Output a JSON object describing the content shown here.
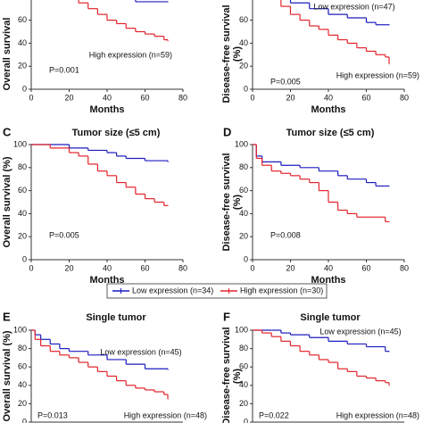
{
  "chart_data": [
    {
      "type": "line",
      "step": true,
      "ylabel": [
        "Overall survival"
      ],
      "xlabel": "Months",
      "annotation": "P=0.001",
      "xlim": [
        0,
        80
      ],
      "ylim": [
        0,
        100
      ],
      "xticks": [
        0,
        20,
        40,
        60,
        80
      ],
      "yticks": [
        0,
        20,
        40,
        60
      ],
      "series": [
        {
          "color": "#1c1cbe",
          "x": [
            0,
            10,
            20,
            30,
            40,
            45,
            55,
            72
          ],
          "values": [
            100,
            95,
            90,
            85,
            82,
            78,
            76,
            76
          ]
        },
        {
          "name": "High expression (n=59)",
          "color": "#e3232b",
          "x": [
            0,
            5,
            10,
            15,
            20,
            25,
            30,
            35,
            40,
            45,
            50,
            55,
            60,
            65,
            70,
            72
          ],
          "values": [
            100,
            95,
            88,
            83,
            80,
            75,
            70,
            65,
            60,
            57,
            53,
            50,
            48,
            46,
            43,
            42
          ]
        }
      ]
    },
    {
      "type": "line",
      "step": true,
      "ylabel": [
        "Disease-free survival",
        "(%)"
      ],
      "xlabel": "Months",
      "annotation": "P=0.005",
      "xlim": [
        0,
        80
      ],
      "ylim": [
        0,
        100
      ],
      "xticks": [
        0,
        20,
        40,
        60,
        80
      ],
      "yticks": [
        0,
        20,
        40,
        60
      ],
      "series": [
        {
          "name": "Low expression (n=47)",
          "color": "#1c1cbe",
          "x": [
            0,
            5,
            10,
            15,
            20,
            30,
            40,
            50,
            60,
            65,
            72
          ],
          "values": [
            100,
            90,
            82,
            78,
            75,
            70,
            65,
            62,
            58,
            56,
            56
          ]
        },
        {
          "name": "High expression (n=59)",
          "color": "#e3232b",
          "x": [
            0,
            5,
            10,
            15,
            20,
            25,
            30,
            35,
            40,
            45,
            50,
            55,
            60,
            65,
            70,
            72
          ],
          "values": [
            100,
            88,
            80,
            72,
            65,
            60,
            55,
            52,
            47,
            43,
            40,
            36,
            33,
            30,
            28,
            22
          ]
        }
      ]
    },
    {
      "type": "line",
      "step": true,
      "panel": "C",
      "title": "Tumor size (≤5 cm)",
      "ylabel": [
        "Overall survival (%)"
      ],
      "xlabel": "Months",
      "annotation": "P=0.005",
      "xlim": [
        0,
        80
      ],
      "ylim": [
        0,
        100
      ],
      "xticks": [
        0,
        20,
        40,
        60,
        80
      ],
      "yticks": [
        0,
        20,
        40,
        60,
        80,
        100
      ],
      "series": [
        {
          "name": "Low expression (n=34)",
          "color": "#1c1cbe",
          "x": [
            0,
            20,
            30,
            40,
            45,
            50,
            60,
            72
          ],
          "values": [
            100,
            97,
            95,
            93,
            90,
            88,
            86,
            85
          ]
        },
        {
          "name": "High expression (n=30)",
          "color": "#e3232b",
          "x": [
            0,
            10,
            20,
            25,
            30,
            35,
            40,
            45,
            50,
            55,
            60,
            65,
            70,
            72
          ],
          "values": [
            100,
            97,
            93,
            90,
            83,
            77,
            73,
            67,
            63,
            57,
            53,
            50,
            47,
            47
          ]
        }
      ]
    },
    {
      "type": "line",
      "step": true,
      "panel": "D",
      "title": "Tumor size (≤5 cm)",
      "ylabel": [
        "Disease-free survival",
        "(%)"
      ],
      "xlabel": "Months",
      "annotation": "P=0.008",
      "xlim": [
        0,
        80
      ],
      "ylim": [
        0,
        100
      ],
      "xticks": [
        0,
        20,
        40,
        60,
        80
      ],
      "yticks": [
        0,
        20,
        40,
        60,
        80,
        100
      ],
      "series": [
        {
          "color": "#1c1cbe",
          "x": [
            0,
            2,
            5,
            15,
            25,
            35,
            45,
            50,
            60,
            65,
            72
          ],
          "values": [
            100,
            90,
            85,
            82,
            80,
            77,
            73,
            70,
            67,
            64,
            64
          ]
        },
        {
          "color": "#e3232b",
          "x": [
            0,
            2,
            5,
            10,
            15,
            20,
            25,
            30,
            35,
            40,
            45,
            50,
            55,
            60,
            65,
            70,
            72
          ],
          "values": [
            100,
            88,
            82,
            77,
            75,
            73,
            70,
            67,
            60,
            50,
            43,
            40,
            37,
            37,
            37,
            33,
            33
          ]
        }
      ]
    },
    {
      "type": "line",
      "step": true,
      "panel": "E",
      "title": "Single tumor",
      "ylabel": [
        "Overall survival (%)"
      ],
      "annotation": "P=0.013",
      "xlim": [
        0,
        80
      ],
      "ylim": [
        0,
        100
      ],
      "yticks": [
        0,
        20,
        40,
        60,
        80,
        100
      ],
      "series": [
        {
          "name": "Low expression (n=45)",
          "color": "#1c1cbe",
          "x": [
            0,
            2,
            5,
            10,
            15,
            20,
            30,
            40,
            50,
            60,
            72
          ],
          "values": [
            100,
            95,
            90,
            85,
            80,
            77,
            73,
            68,
            63,
            58,
            57
          ]
        },
        {
          "name": "High expression (n=48)",
          "color": "#e3232b",
          "x": [
            0,
            2,
            5,
            10,
            15,
            20,
            25,
            30,
            35,
            40,
            45,
            50,
            55,
            60,
            65,
            70,
            72
          ],
          "values": [
            100,
            90,
            83,
            77,
            73,
            70,
            65,
            60,
            55,
            50,
            45,
            40,
            37,
            35,
            33,
            30,
            25
          ]
        }
      ]
    },
    {
      "type": "line",
      "step": true,
      "panel": "F",
      "title": "Single tumor",
      "ylabel": [
        "Disease-free survival",
        "(%)"
      ],
      "annotation": "P=0.022",
      "xlim": [
        0,
        80
      ],
      "ylim": [
        0,
        100
      ],
      "yticks": [
        0,
        20,
        40,
        60,
        80,
        100
      ],
      "series": [
        {
          "name": "Low expression (n=45)",
          "color": "#1c1cbe",
          "x": [
            0,
            10,
            15,
            20,
            30,
            40,
            50,
            60,
            70,
            72
          ],
          "values": [
            100,
            100,
            97,
            95,
            92,
            88,
            85,
            82,
            77,
            77
          ]
        },
        {
          "name": "High expression (n=48)",
          "color": "#e3232b",
          "x": [
            0,
            5,
            10,
            15,
            20,
            25,
            30,
            35,
            40,
            45,
            50,
            55,
            60,
            65,
            70,
            72
          ],
          "values": [
            100,
            97,
            93,
            88,
            83,
            77,
            73,
            68,
            65,
            58,
            55,
            50,
            48,
            45,
            43,
            40
          ]
        }
      ]
    }
  ]
}
